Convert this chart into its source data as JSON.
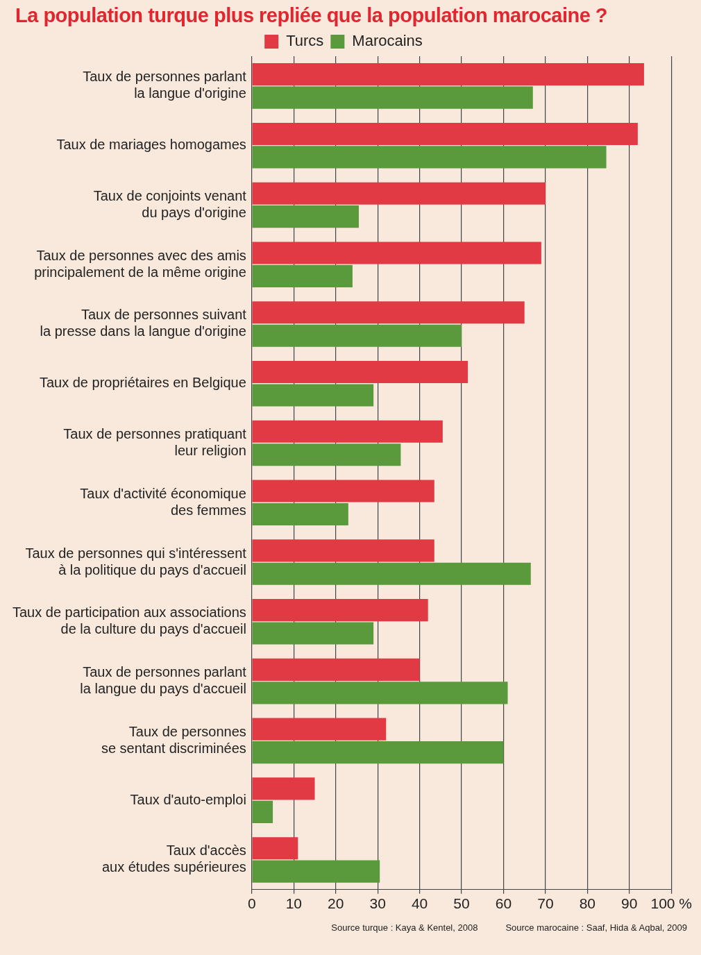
{
  "chart_data": {
    "type": "bar",
    "orientation": "horizontal",
    "title": "La population turque plus repliée que la population marocaine ?",
    "categories": [
      "Taux de personnes parlant\nla langue d'origine",
      "Taux de mariages homogames",
      "Taux de conjoints venant\ndu pays d'origine",
      "Taux de personnes avec des amis\nprincipalement de la même origine",
      "Taux de personnes suivant\nla presse dans la langue d'origine",
      "Taux de propriétaires en Belgique",
      "Taux de personnes pratiquant\nleur religion",
      "Taux d'activité économique\ndes femmes",
      "Taux de personnes qui s'intéressent\nà la politique du pays d'accueil",
      "Taux de participation aux associations\nde la culture du pays d'accueil",
      "Taux de personnes parlant\nla langue du pays d'accueil",
      "Taux de personnes\nse sentant discriminées",
      "Taux d'auto-emploi",
      "Taux d'accès\naux études supérieures"
    ],
    "series": [
      {
        "name": "Turcs",
        "color": "#e23a44",
        "values": [
          93.5,
          92,
          70,
          69,
          65,
          51.5,
          45.5,
          43.5,
          43.5,
          42,
          40,
          32,
          15,
          11
        ]
      },
      {
        "name": "Marocains",
        "color": "#5b9a3c",
        "values": [
          67,
          84.5,
          25.5,
          24,
          50,
          29,
          35.5,
          23,
          66.5,
          29,
          61,
          60,
          5,
          30.5
        ]
      }
    ],
    "xlim": [
      0,
      100
    ],
    "xticks": [
      0,
      10,
      20,
      30,
      40,
      50,
      60,
      70,
      80,
      90,
      {
        "value": 100,
        "label": "100 %"
      }
    ],
    "grid": "x",
    "legend": "top",
    "annotations": [
      "Source turque : Kaya & Kentel, 2008",
      "Source marocaine : Saaf, Hida & Aqbal, 2009"
    ]
  }
}
